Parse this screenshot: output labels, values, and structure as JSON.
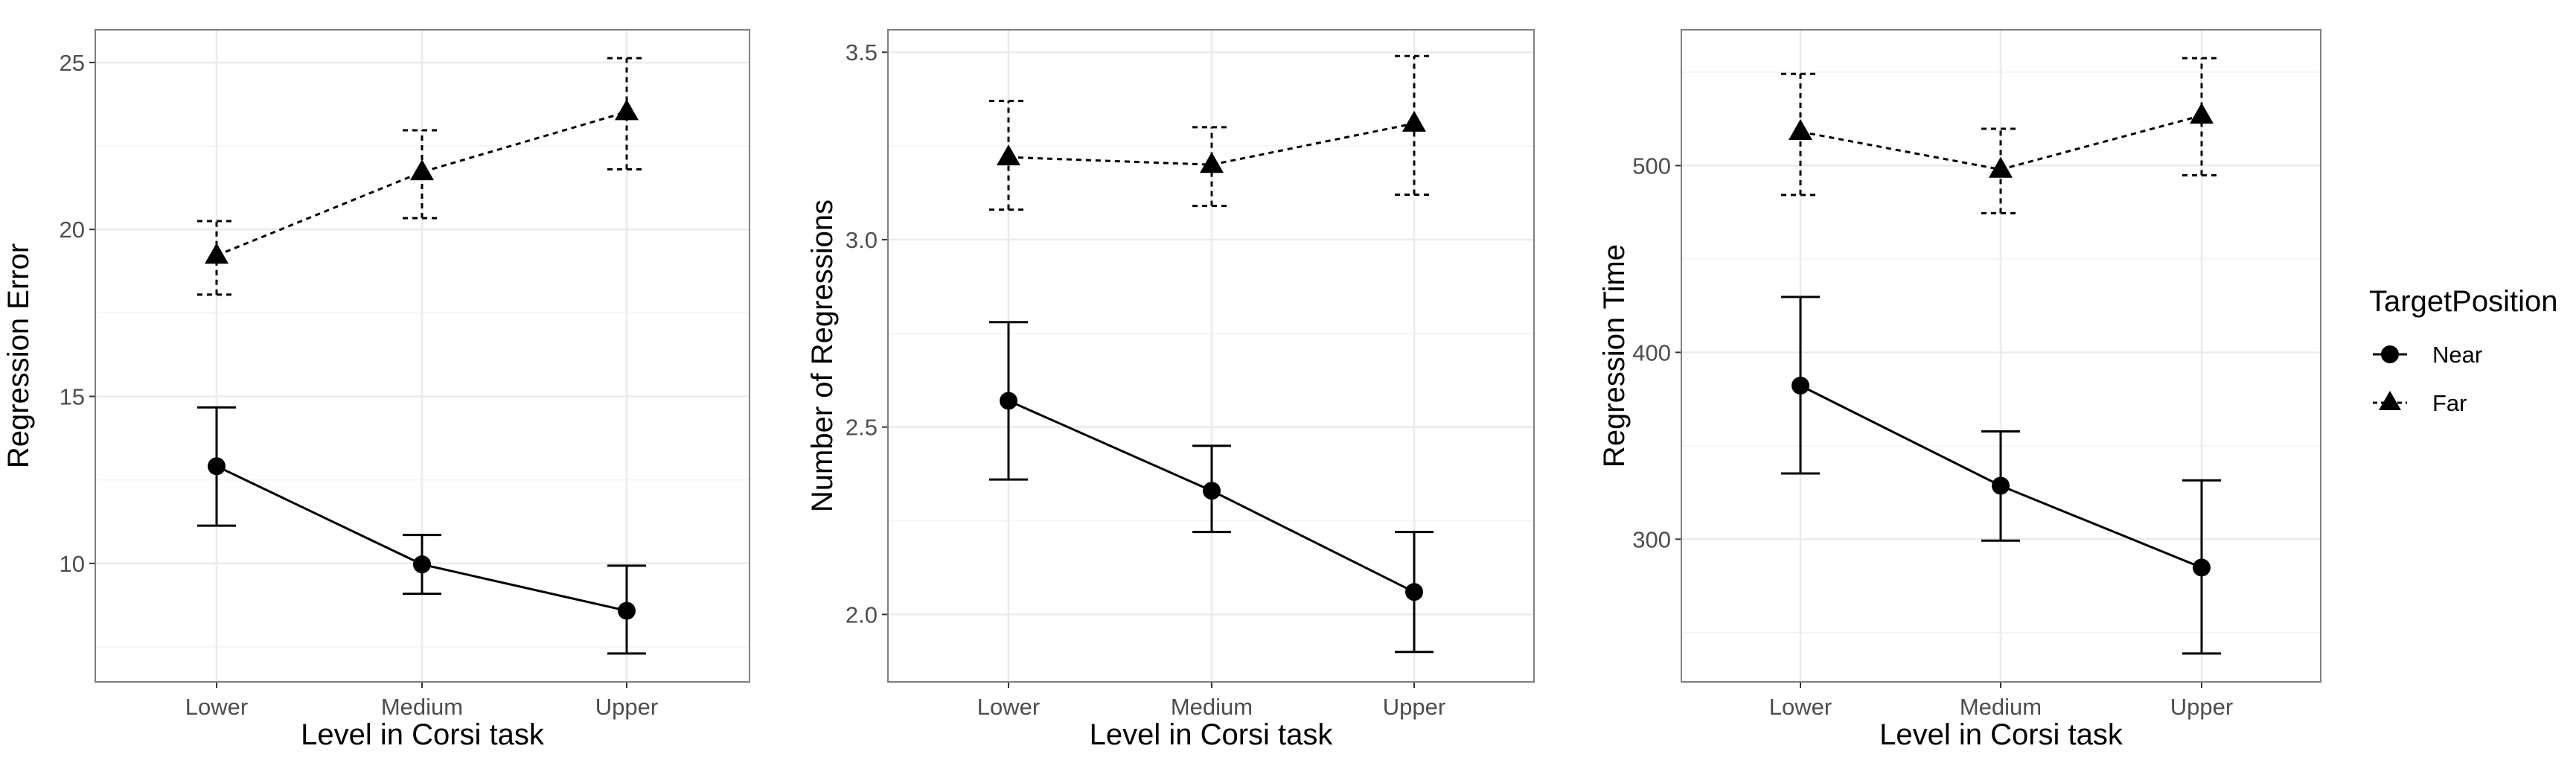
{
  "chart_data": [
    {
      "type": "line",
      "xlabel": "Level in Corsi task",
      "ylabel": "Regression Error",
      "categories": [
        "Lower",
        "Medium",
        "Upper"
      ],
      "ylim": [
        6.45,
        25.98
      ],
      "yticks": [
        10,
        15,
        20,
        25
      ],
      "grid": true,
      "series": [
        {
          "name": "Near",
          "marker": "circle",
          "linestyle": "solid",
          "values": [
            12.91,
            9.97,
            8.58
          ],
          "error_low": [
            11.13,
            9.09,
            7.3
          ],
          "error_high": [
            14.67,
            10.85,
            9.93
          ]
        },
        {
          "name": "Far",
          "marker": "triangle",
          "linestyle": "dashed",
          "values": [
            19.22,
            21.72,
            23.52
          ],
          "error_low": [
            18.05,
            20.34,
            21.8
          ],
          "error_high": [
            20.25,
            22.97,
            25.13
          ]
        }
      ]
    },
    {
      "type": "line",
      "xlabel": "Level in Corsi task",
      "ylabel": "Number of Regressions",
      "categories": [
        "Lower",
        "Medium",
        "Upper"
      ],
      "ylim": [
        1.82,
        3.56
      ],
      "yticks": [
        2.0,
        2.5,
        3.0,
        3.5
      ],
      "ytick_labels": [
        "2.0",
        "2.5",
        "3.0",
        "3.5"
      ],
      "grid": true,
      "series": [
        {
          "name": "Near",
          "marker": "circle",
          "linestyle": "solid",
          "values": [
            2.57,
            2.33,
            2.06
          ],
          "error_low": [
            2.36,
            2.22,
            1.9
          ],
          "error_high": [
            2.78,
            2.45,
            2.22
          ]
        },
        {
          "name": "Far",
          "marker": "triangle",
          "linestyle": "dashed",
          "values": [
            3.22,
            3.2,
            3.31
          ],
          "error_low": [
            3.08,
            3.09,
            3.12
          ],
          "error_high": [
            3.37,
            3.3,
            3.49
          ]
        }
      ]
    },
    {
      "type": "line",
      "xlabel": "Level in Corsi task",
      "ylabel": "Regression Time",
      "categories": [
        "Lower",
        "Medium",
        "Upper"
      ],
      "ylim": [
        223.6,
        572.7
      ],
      "yticks": [
        300,
        400,
        500
      ],
      "grid": true,
      "series": [
        {
          "name": "Near",
          "marker": "circle",
          "linestyle": "solid",
          "values": [
            382.2,
            328.6,
            284.8
          ],
          "error_low": [
            335.2,
            299.2,
            238.8
          ],
          "error_high": [
            429.7,
            357.7,
            331.5
          ]
        },
        {
          "name": "Far",
          "marker": "triangle",
          "linestyle": "dashed",
          "values": [
            518.1,
            497.9,
            526.8
          ],
          "error_low": [
            484.3,
            474.5,
            494.8
          ],
          "error_high": [
            549.1,
            519.7,
            557.5
          ]
        }
      ]
    }
  ],
  "legend": {
    "title": "TargetPosition",
    "placement": "right",
    "items": [
      {
        "label": "Near",
        "marker": "circle",
        "linestyle": "solid"
      },
      {
        "label": "Far",
        "marker": "triangle",
        "linestyle": "dashed"
      }
    ]
  },
  "colors": {
    "series": "#000000",
    "grid": "#ebebeb",
    "panel_border": "#7f7f7f",
    "tick_text": "#4d4d4d"
  }
}
